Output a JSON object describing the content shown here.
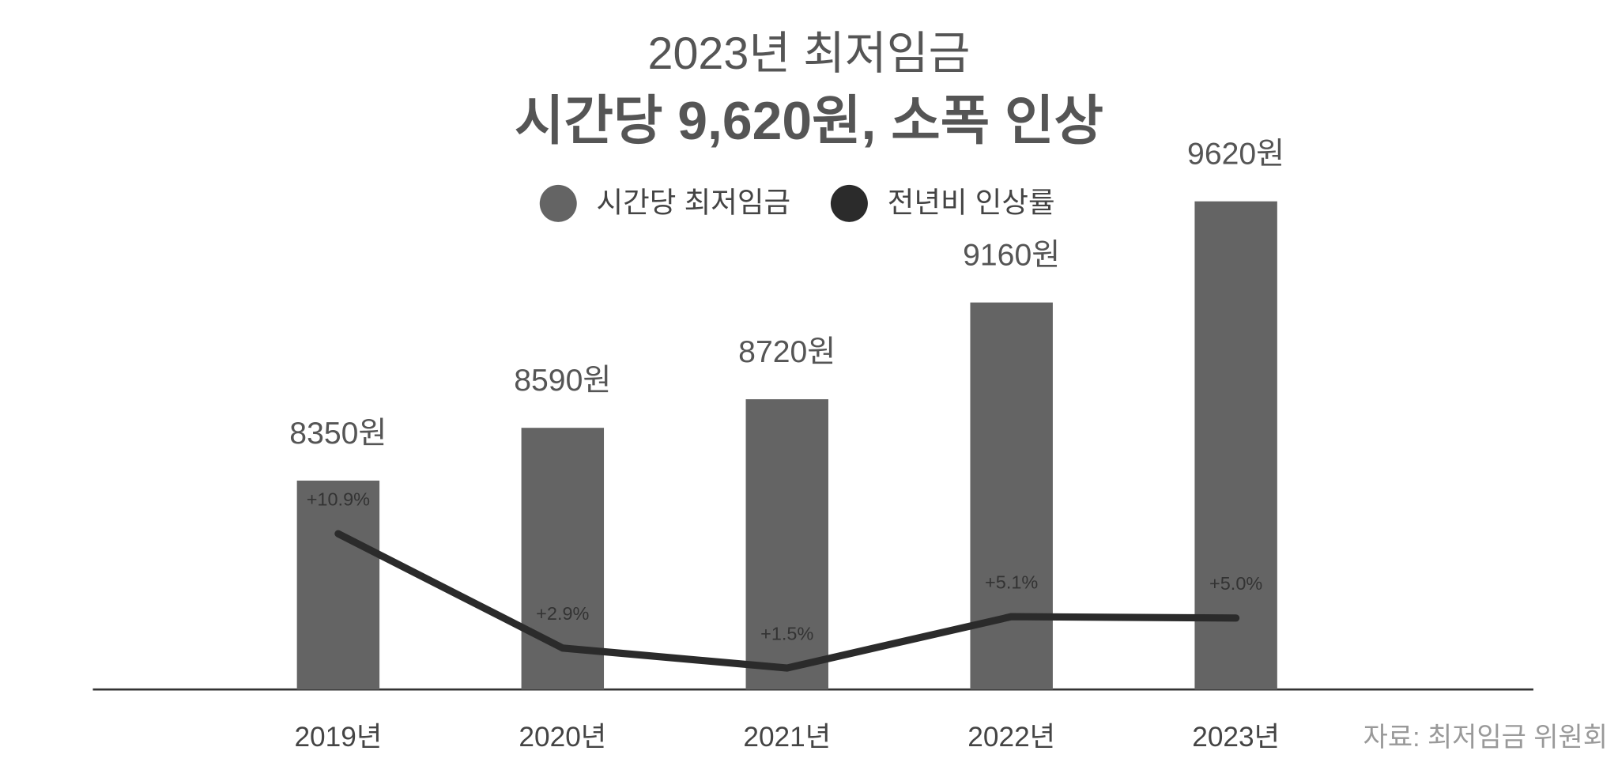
{
  "chart_data": {
    "type": "bar",
    "title": "2023년 최저임금",
    "subtitle": "시간당 9,620원, 소폭 인상",
    "source": "자료: 최저임금 위원회",
    "categories": [
      "2019년",
      "2020년",
      "2021년",
      "2022년",
      "2023년"
    ],
    "series": [
      {
        "name": "시간당 최저임금",
        "type": "bar",
        "color": "#646464",
        "values": [
          8350,
          8590,
          8720,
          9160,
          9620
        ],
        "value_labels": [
          "8350원",
          "8590원",
          "8720원",
          "9160원",
          "9620원"
        ]
      },
      {
        "name": "전년비 인상률",
        "type": "line",
        "axis": "y2",
        "color": "#2b2b2b",
        "values": [
          10.9,
          2.9,
          1.5,
          5.1,
          5.0
        ],
        "value_labels": [
          "+10.9%",
          "+2.9%",
          "+1.5%",
          "+5.1%",
          "+5.0%"
        ]
      }
    ],
    "ylim": [
      7400,
      10000
    ],
    "y2lim": [
      0,
      40
    ]
  }
}
